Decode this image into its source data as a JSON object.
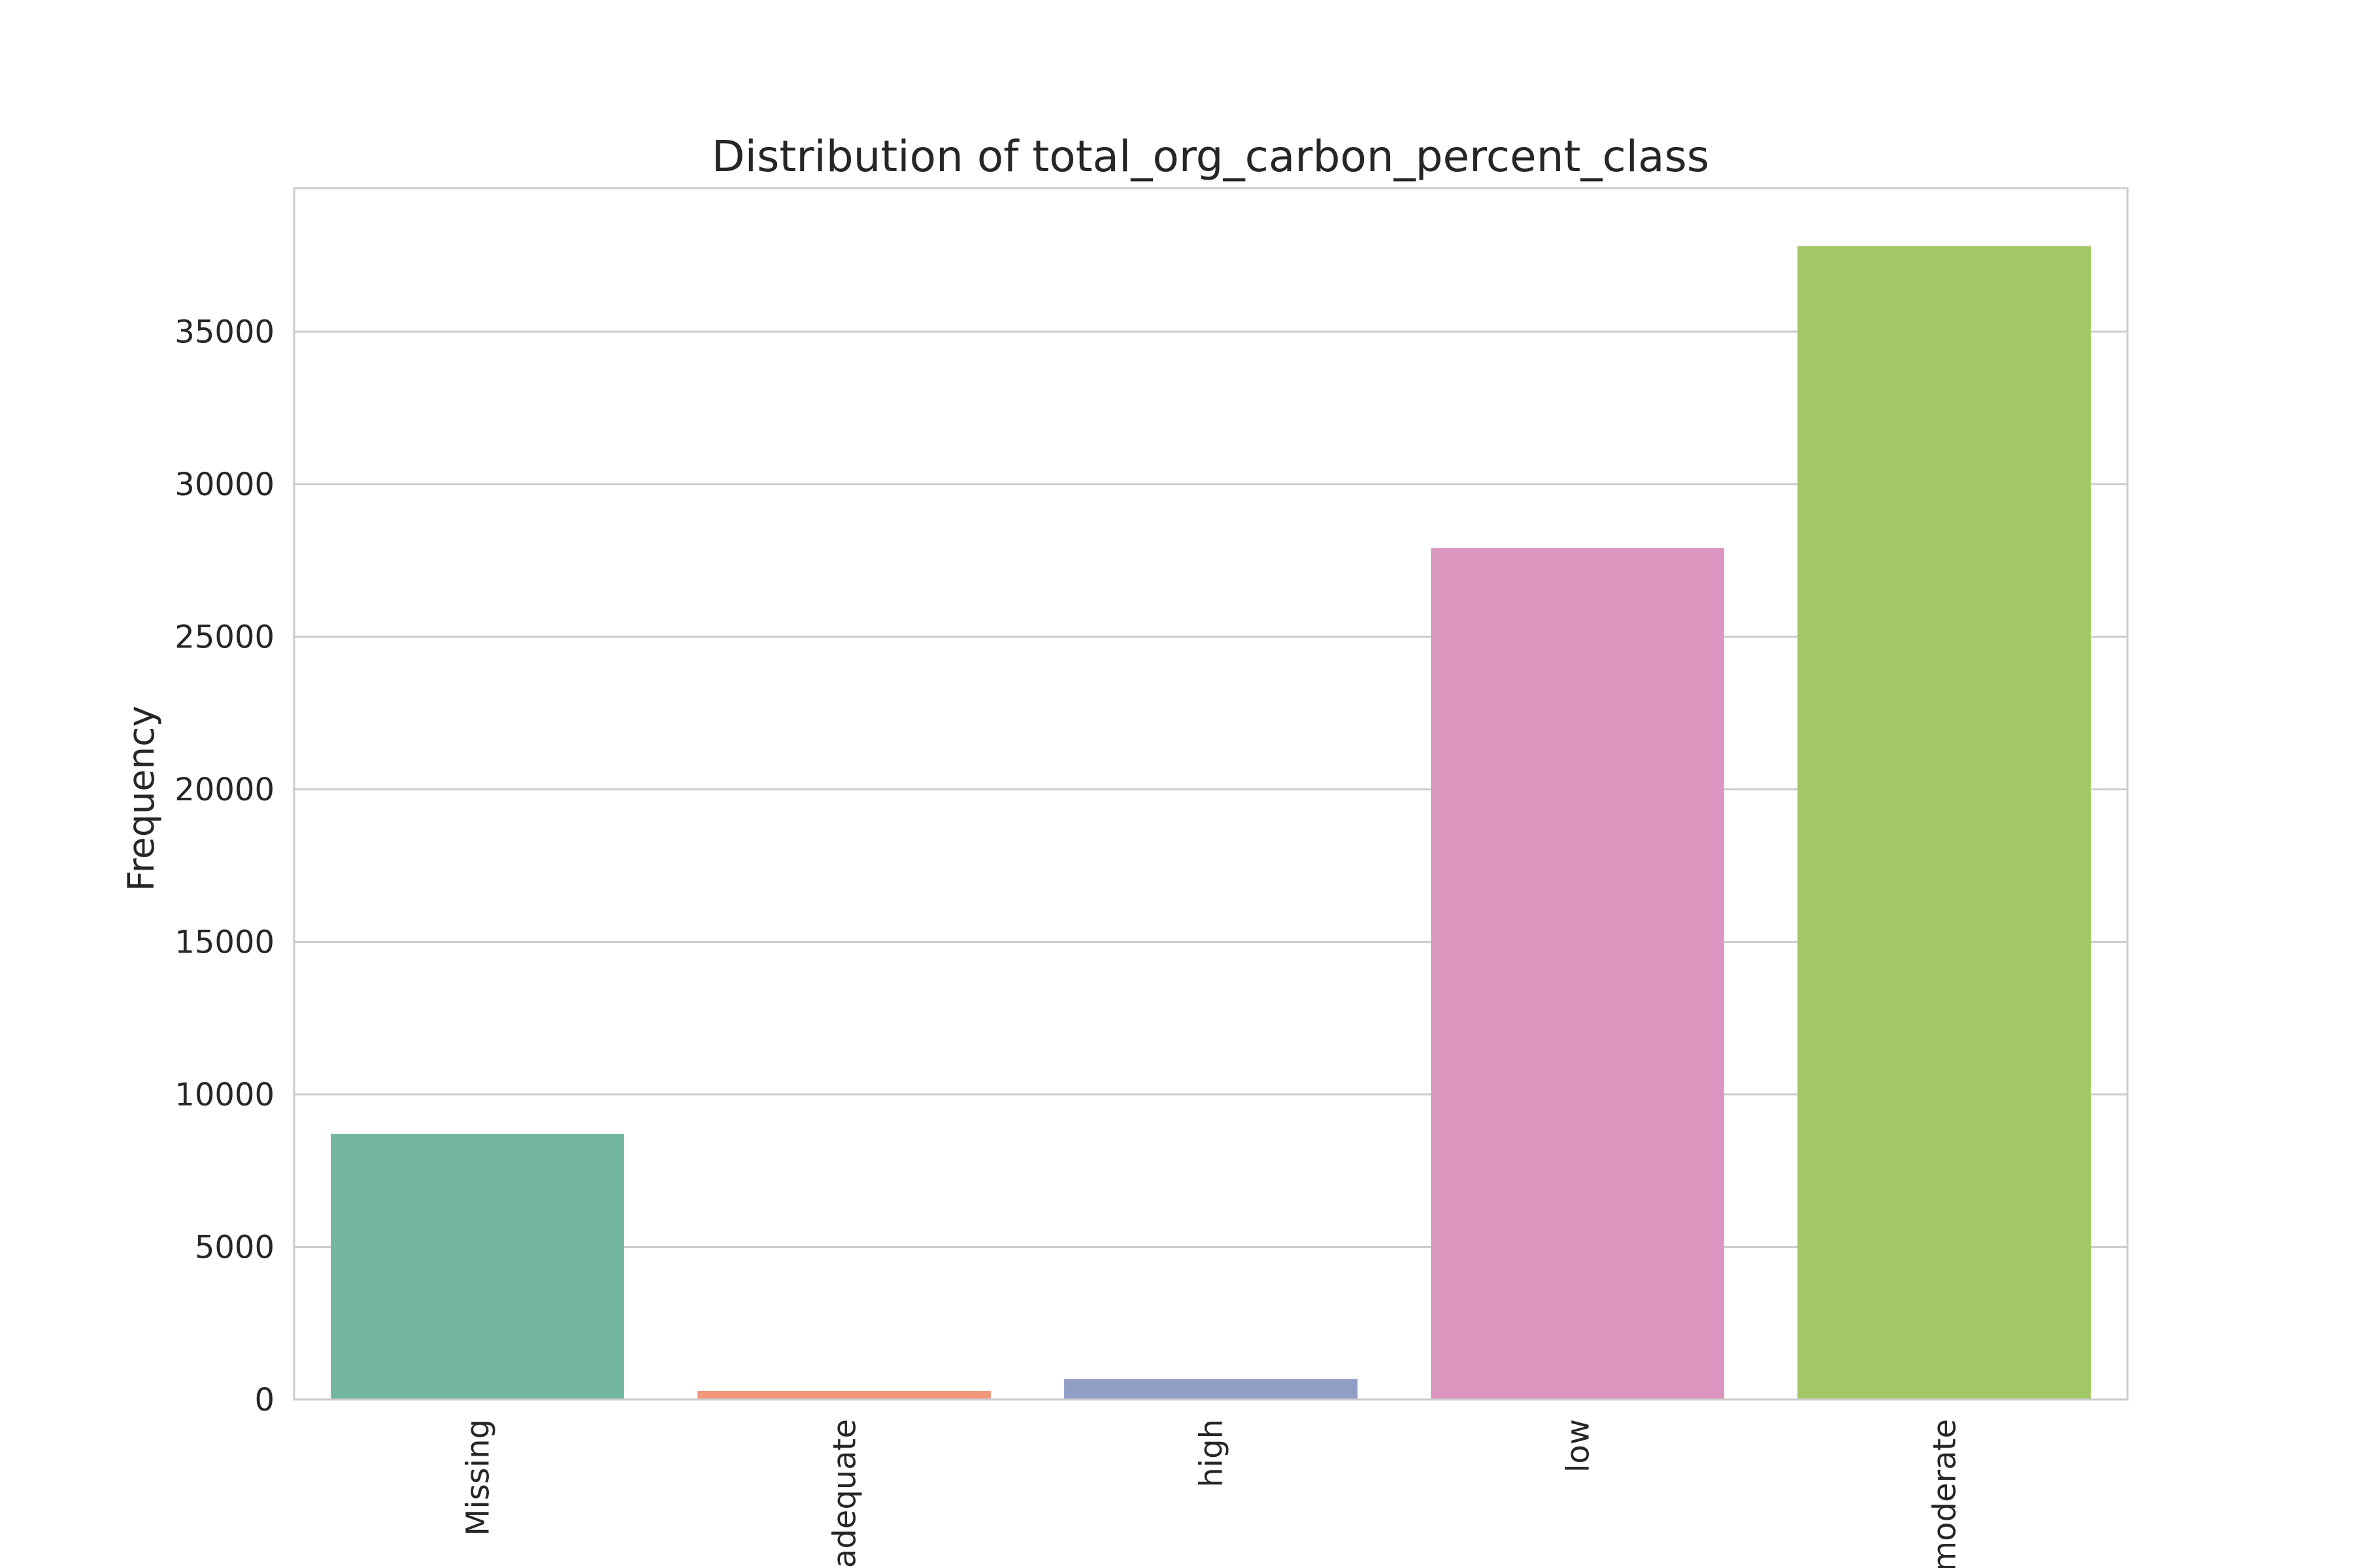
{
  "chart_data": {
    "type": "bar",
    "title": "Distribution of total_org_carbon_percent_class",
    "xlabel": "",
    "ylabel": "Frequency",
    "categories": [
      "Missing",
      "adequate",
      "high",
      "low",
      "moderate"
    ],
    "values": [
      8700,
      280,
      670,
      27900,
      37800
    ],
    "colors": [
      "#73b6a0",
      "#f2977a",
      "#919fc7",
      "#db96bf",
      "#a2c865"
    ],
    "ylim": [
      0,
      39700
    ],
    "yticks": [
      0,
      5000,
      10000,
      15000,
      20000,
      25000,
      30000,
      35000
    ],
    "grid": true,
    "legend": "none"
  }
}
